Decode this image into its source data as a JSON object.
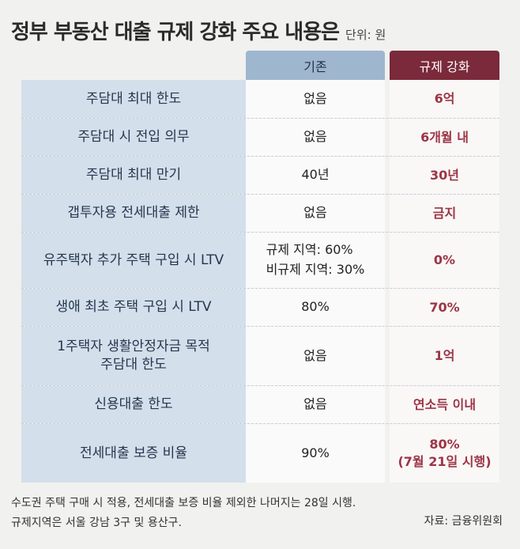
{
  "title": "정부 부동산 대출 규제 강화 주요 내용은",
  "unit": "단위: 원",
  "columns": {
    "base": "기존",
    "regulation": "규제 강화"
  },
  "rows": [
    {
      "label": "주담대 최대 한도",
      "base": "없음",
      "regulation": "6억"
    },
    {
      "label": "주담대 시 전입 의무",
      "base": "없음",
      "regulation": "6개월 내"
    },
    {
      "label": "주담대 최대 만기",
      "base": "40년",
      "regulation": "30년"
    },
    {
      "label": "갭투자용 전세대출 제한",
      "base": "없음",
      "regulation": "금지"
    },
    {
      "label": "유주택자 추가 주택 구입 시 LTV",
      "base_lines": [
        "규제 지역: 60%",
        "비규제 지역: 30%"
      ],
      "regulation": "0%"
    },
    {
      "label": "생애 최초 주택 구입 시 LTV",
      "base": "80%",
      "regulation": "70%"
    },
    {
      "label_lines": [
        "1주택자 생활안정자금 목적",
        "주담대 한도"
      ],
      "base": "없음",
      "regulation": "1억"
    },
    {
      "label": "신용대출 한도",
      "base": "없음",
      "regulation": "연소득 이내"
    },
    {
      "label": "전세대출 보증 비율",
      "base": "90%",
      "regulation_lines": [
        "80%",
        "(7월 21일 시행)"
      ]
    }
  ],
  "footnotes": [
    "수도권 주택 구매 시 적용, 전세대출 보증 비율 제외한 나머지는 28일 시행.",
    "규제지역은 서울 강남 3구 및 용산구."
  ],
  "source": "자료: 금융위원회",
  "colors": {
    "label_bg": "#d3dfea",
    "base_head": "#9fb6cf",
    "reg_head": "#7a2a3a",
    "reg_text": "#9b3544"
  }
}
